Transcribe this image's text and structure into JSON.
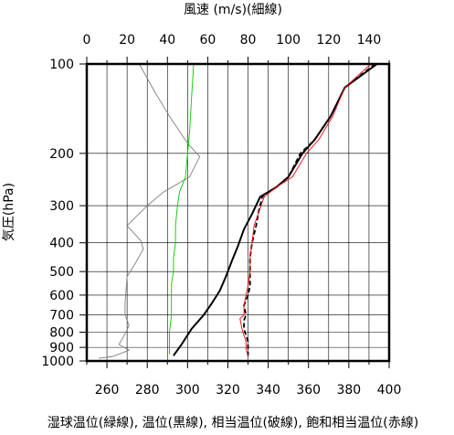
{
  "chart_data": {
    "type": "line",
    "title": "",
    "top_axis": {
      "label": "風速 (m/s)(細線)",
      "range": [
        0,
        150
      ],
      "ticks": [
        0,
        20,
        40,
        60,
        80,
        100,
        120,
        140
      ],
      "tick_labels": [
        "0",
        "20",
        "40",
        "60",
        "80",
        "100",
        "120",
        "140"
      ]
    },
    "x_axis": {
      "label": "湿球温位(緑線), 温位(黒線), 相当温位(破線), 飽和相当温位(赤線)",
      "range": [
        250,
        400
      ],
      "ticks": [
        260,
        280,
        300,
        320,
        340,
        360,
        380,
        400
      ],
      "tick_labels": [
        "260",
        "280",
        "300",
        "320",
        "340",
        "360",
        "380",
        "400"
      ]
    },
    "y_axis": {
      "label": "気圧(hPa)",
      "scale": "log",
      "range": [
        1000,
        100
      ],
      "ticks": [
        100,
        200,
        300,
        400,
        500,
        600,
        700,
        800,
        900,
        1000
      ],
      "tick_labels": [
        "100",
        "200",
        "300",
        "400",
        "500",
        "600",
        "700",
        "800",
        "900",
        "1000"
      ]
    },
    "grid": true,
    "series": [
      {
        "axis": "top",
        "color": "#808080",
        "style": "thin",
        "points": [
          [
            26,
            100
          ],
          [
            34,
            125
          ],
          [
            41,
            150
          ],
          [
            50,
            185
          ],
          [
            56,
            205
          ],
          [
            51,
            240
          ],
          [
            38,
            270
          ],
          [
            30,
            300
          ],
          [
            20,
            350
          ],
          [
            27,
            395
          ],
          [
            28,
            420
          ],
          [
            24,
            470
          ],
          [
            20,
            520
          ],
          [
            19,
            640
          ],
          [
            19,
            700
          ],
          [
            21,
            760
          ],
          [
            19,
            810
          ],
          [
            16,
            880
          ],
          [
            21,
            920
          ],
          [
            13,
            965
          ],
          [
            6,
            980
          ]
        ]
      },
      {
        "axis": "bottom",
        "color": "#00cc00",
        "style": "thin",
        "points": [
          [
            303,
            100
          ],
          [
            302,
            130
          ],
          [
            301,
            170
          ],
          [
            300,
            200
          ],
          [
            299,
            240
          ],
          [
            296,
            270
          ],
          [
            295,
            300
          ],
          [
            294,
            350
          ],
          [
            294,
            400
          ],
          [
            293,
            450
          ],
          [
            293,
            500
          ],
          [
            292,
            550
          ],
          [
            292,
            600
          ],
          [
            292,
            700
          ],
          [
            291,
            800
          ],
          [
            291,
            900
          ],
          [
            291,
            950
          ]
        ]
      },
      {
        "axis": "bottom",
        "color": "#000000",
        "style": "thick",
        "points": [
          [
            394,
            100
          ],
          [
            378,
            120
          ],
          [
            371,
            150
          ],
          [
            363,
            180
          ],
          [
            357,
            200
          ],
          [
            350,
            240
          ],
          [
            344,
            260
          ],
          [
            336,
            280
          ],
          [
            332,
            320
          ],
          [
            328,
            360
          ],
          [
            325,
            410
          ],
          [
            322,
            460
          ],
          [
            319,
            520
          ],
          [
            316,
            580
          ],
          [
            312,
            640
          ],
          [
            308,
            700
          ],
          [
            302,
            780
          ],
          [
            297,
            880
          ],
          [
            293,
            960
          ]
        ]
      },
      {
        "axis": "bottom",
        "color": "#000000",
        "style": "dashed",
        "points": [
          [
            393,
            100
          ],
          [
            378,
            120
          ],
          [
            371,
            150
          ],
          [
            363,
            180
          ],
          [
            356,
            200
          ],
          [
            350,
            240
          ],
          [
            344,
            260
          ],
          [
            337,
            280
          ],
          [
            335,
            320
          ],
          [
            334,
            350
          ],
          [
            332,
            400
          ],
          [
            331,
            450
          ],
          [
            331,
            500
          ],
          [
            331,
            560
          ],
          [
            330,
            600
          ],
          [
            328,
            650
          ],
          [
            329,
            700
          ],
          [
            328,
            730
          ],
          [
            328,
            780
          ],
          [
            329,
            820
          ],
          [
            330,
            860
          ],
          [
            330,
            910
          ],
          [
            330,
            960
          ]
        ]
      },
      {
        "axis": "bottom",
        "color": "#ff0000",
        "style": "thin",
        "points": [
          [
            391,
            100
          ],
          [
            378,
            120
          ],
          [
            372,
            150
          ],
          [
            365,
            180
          ],
          [
            359,
            200
          ],
          [
            352,
            240
          ],
          [
            344,
            260
          ],
          [
            338,
            280
          ],
          [
            335,
            320
          ],
          [
            333,
            350
          ],
          [
            332,
            400
          ],
          [
            331,
            450
          ],
          [
            331,
            500
          ],
          [
            330,
            560
          ],
          [
            329,
            600
          ],
          [
            328,
            650
          ],
          [
            328,
            700
          ],
          [
            326,
            720
          ],
          [
            327,
            780
          ],
          [
            328,
            820
          ],
          [
            329,
            860
          ],
          [
            329,
            910
          ],
          [
            330,
            960
          ]
        ]
      }
    ]
  }
}
